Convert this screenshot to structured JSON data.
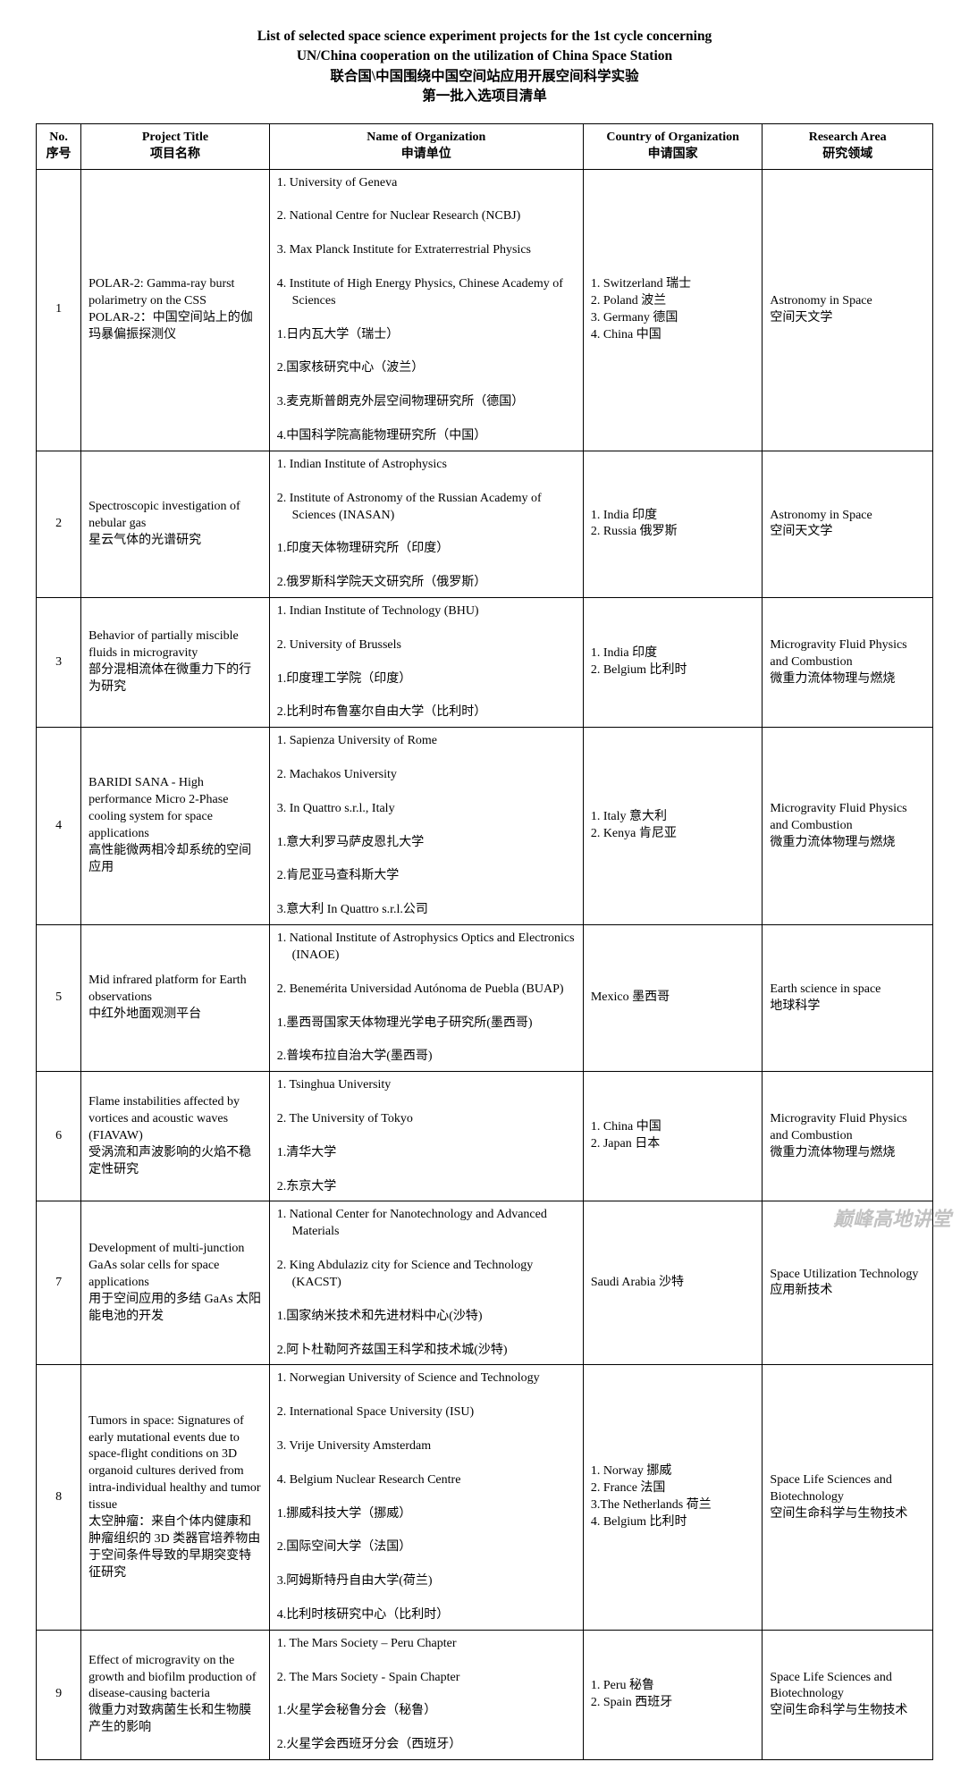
{
  "title": {
    "en1": "List of selected space science experiment projects for the 1st cycle concerning",
    "en2": "UN/China cooperation on the utilization of China Space Station",
    "zh1": "联合国\\中国围绕中国空间站应用开展空间科学实验",
    "zh2": "第一批入选项目清单"
  },
  "headers": {
    "no_en": "No.",
    "no_zh": "序号",
    "title_en": "Project Title",
    "title_zh": "项目名称",
    "org_en": "Name of Organization",
    "org_zh": "申请单位",
    "country_en": "Country of Organization",
    "country_zh": "申请国家",
    "area_en": "Research Area",
    "area_zh": "研究领域"
  },
  "rows": [
    {
      "no": "1",
      "title": "POLAR-2: Gamma-ray burst polarimetry on the CSS\nPOLAR-2：中国空间站上的伽玛暴偏振探测仪",
      "org": "1. University of Geneva\n2. National Centre for Nuclear Research (NCBJ)\n3. Max Planck Institute for Extraterrestrial Physics\n4. Institute of High Energy Physics, Chinese Academy of Sciences\n1.日内瓦大学（瑞士）\n2.国家核研究中心（波兰）\n3.麦克斯普朗克外层空间物理研究所（德国）\n4.中国科学院高能物理研究所（中国）",
      "country": "1. Switzerland 瑞士\n2. Poland 波兰\n3. Germany 德国\n4. China 中国",
      "area": "Astronomy in Space\n空间天文学"
    },
    {
      "no": "2",
      "title": "Spectroscopic investigation of nebular gas\n星云气体的光谱研究",
      "org": "1. Indian Institute of Astrophysics\n2. Institute of Astronomy of the Russian Academy of Sciences (INASAN)\n1.印度天体物理研究所（印度）\n2.俄罗斯科学院天文研究所（俄罗斯）",
      "country": "1. India  印度\n2. Russia  俄罗斯",
      "area": "Astronomy in Space\n空间天文学"
    },
    {
      "no": "3",
      "title": "Behavior of partially miscible fluids in microgravity\n部分混相流体在微重力下的行为研究",
      "org": "1. Indian Institute of Technology (BHU)\n2. University of Brussels\n1.印度理工学院（印度）\n2.比利时布鲁塞尔自由大学（比利时）",
      "country": "1. India  印度\n2. Belgium  比利时",
      "area": "Microgravity Fluid Physics and Combustion\n微重力流体物理与燃烧"
    },
    {
      "no": "4",
      "title": "BARIDI SANA - High performance Micro 2-Phase cooling system for space applications\n高性能微两相冷却系统的空间应用",
      "org": "1. Sapienza University of Rome\n2. Machakos University\n3. In Quattro s.r.l., Italy\n1.意大利罗马萨皮恩扎大学\n2.肯尼亚马查科斯大学\n3.意大利 In Quattro s.r.l.公司",
      "country": "1. Italy  意大利\n2. Kenya  肯尼亚",
      "area": "Microgravity Fluid Physics and Combustion\n微重力流体物理与燃烧"
    },
    {
      "no": "5",
      "title": "Mid infrared platform for Earth observations\n中红外地面观测平台",
      "org": "1. National Institute of Astrophysics Optics and Electronics (INAOE)\n2. Benemérita Universidad Autónoma de Puebla (BUAP)\n1.墨西哥国家天体物理光学电子研究所(墨西哥)\n2.普埃布拉自治大学(墨西哥)",
      "country": "Mexico  墨西哥",
      "area": "Earth science in space\n地球科学"
    },
    {
      "no": "6",
      "title": "Flame instabilities affected by vortices and acoustic waves (FIAVAW)\n受涡流和声波影响的火焰不稳定性研究",
      "org": "1. Tsinghua University\n2. The University of Tokyo\n1.清华大学\n2.东京大学",
      "country": "1. China  中国\n2. Japan  日本",
      "area": "Microgravity Fluid Physics and Combustion\n微重力流体物理与燃烧"
    },
    {
      "no": "7",
      "title": "Development of multi-junction GaAs solar cells for space applications\n用于空间应用的多结 GaAs 太阳能电池的开发",
      "org": "1. National Center for Nanotechnology and Advanced Materials\n2. King Abdulaziz city for Science and Technology (KACST)\n1.国家纳米技术和先进材料中心(沙特)\n2.阿卜杜勒阿齐兹国王科学和技术城(沙特)",
      "country": "Saudi Arabia  沙特",
      "area": "Space Utilization Technology\n应用新技术"
    },
    {
      "no": "8",
      "title": "Tumors in space: Signatures of early mutational events due to space-flight conditions on 3D organoid cultures derived from intra-individual healthy and tumor tissue\n太空肿瘤：来自个体内健康和肿瘤组织的 3D 类器官培养物由于空间条件导致的早期突变特征研究",
      "org": "1. Norwegian University of Science and Technology\n2. International Space University (ISU)\n3. Vrije University Amsterdam\n4. Belgium Nuclear Research Centre\n1.挪威科技大学（挪威）\n2.国际空间大学（法国）\n3.阿姆斯特丹自由大学(荷兰)\n4.比利时核研究中心（比利时）",
      "country": "1. Norway  挪威\n2. France 法国\n3.The Netherlands  荷兰\n4. Belgium 比利时",
      "area": "Space Life Sciences and Biotechnology\n空间生命科学与生物技术"
    },
    {
      "no": "9",
      "title": "Effect of microgravity on the growth and biofilm production of disease-causing bacteria\n微重力对致病菌生长和生物膜产生的影响",
      "org": "1. The Mars Society – Peru Chapter\n2. The Mars Society - Spain Chapter\n1.火星学会秘鲁分会（秘鲁）\n2.火星学会西班牙分会（西班牙）",
      "country": "1. Peru  秘鲁\n2. Spain  西班牙",
      "area": "Space Life Sciences and Biotechnology\n空间生命科学与生物技术"
    }
  ],
  "watermark": "巅峰高地讲堂"
}
